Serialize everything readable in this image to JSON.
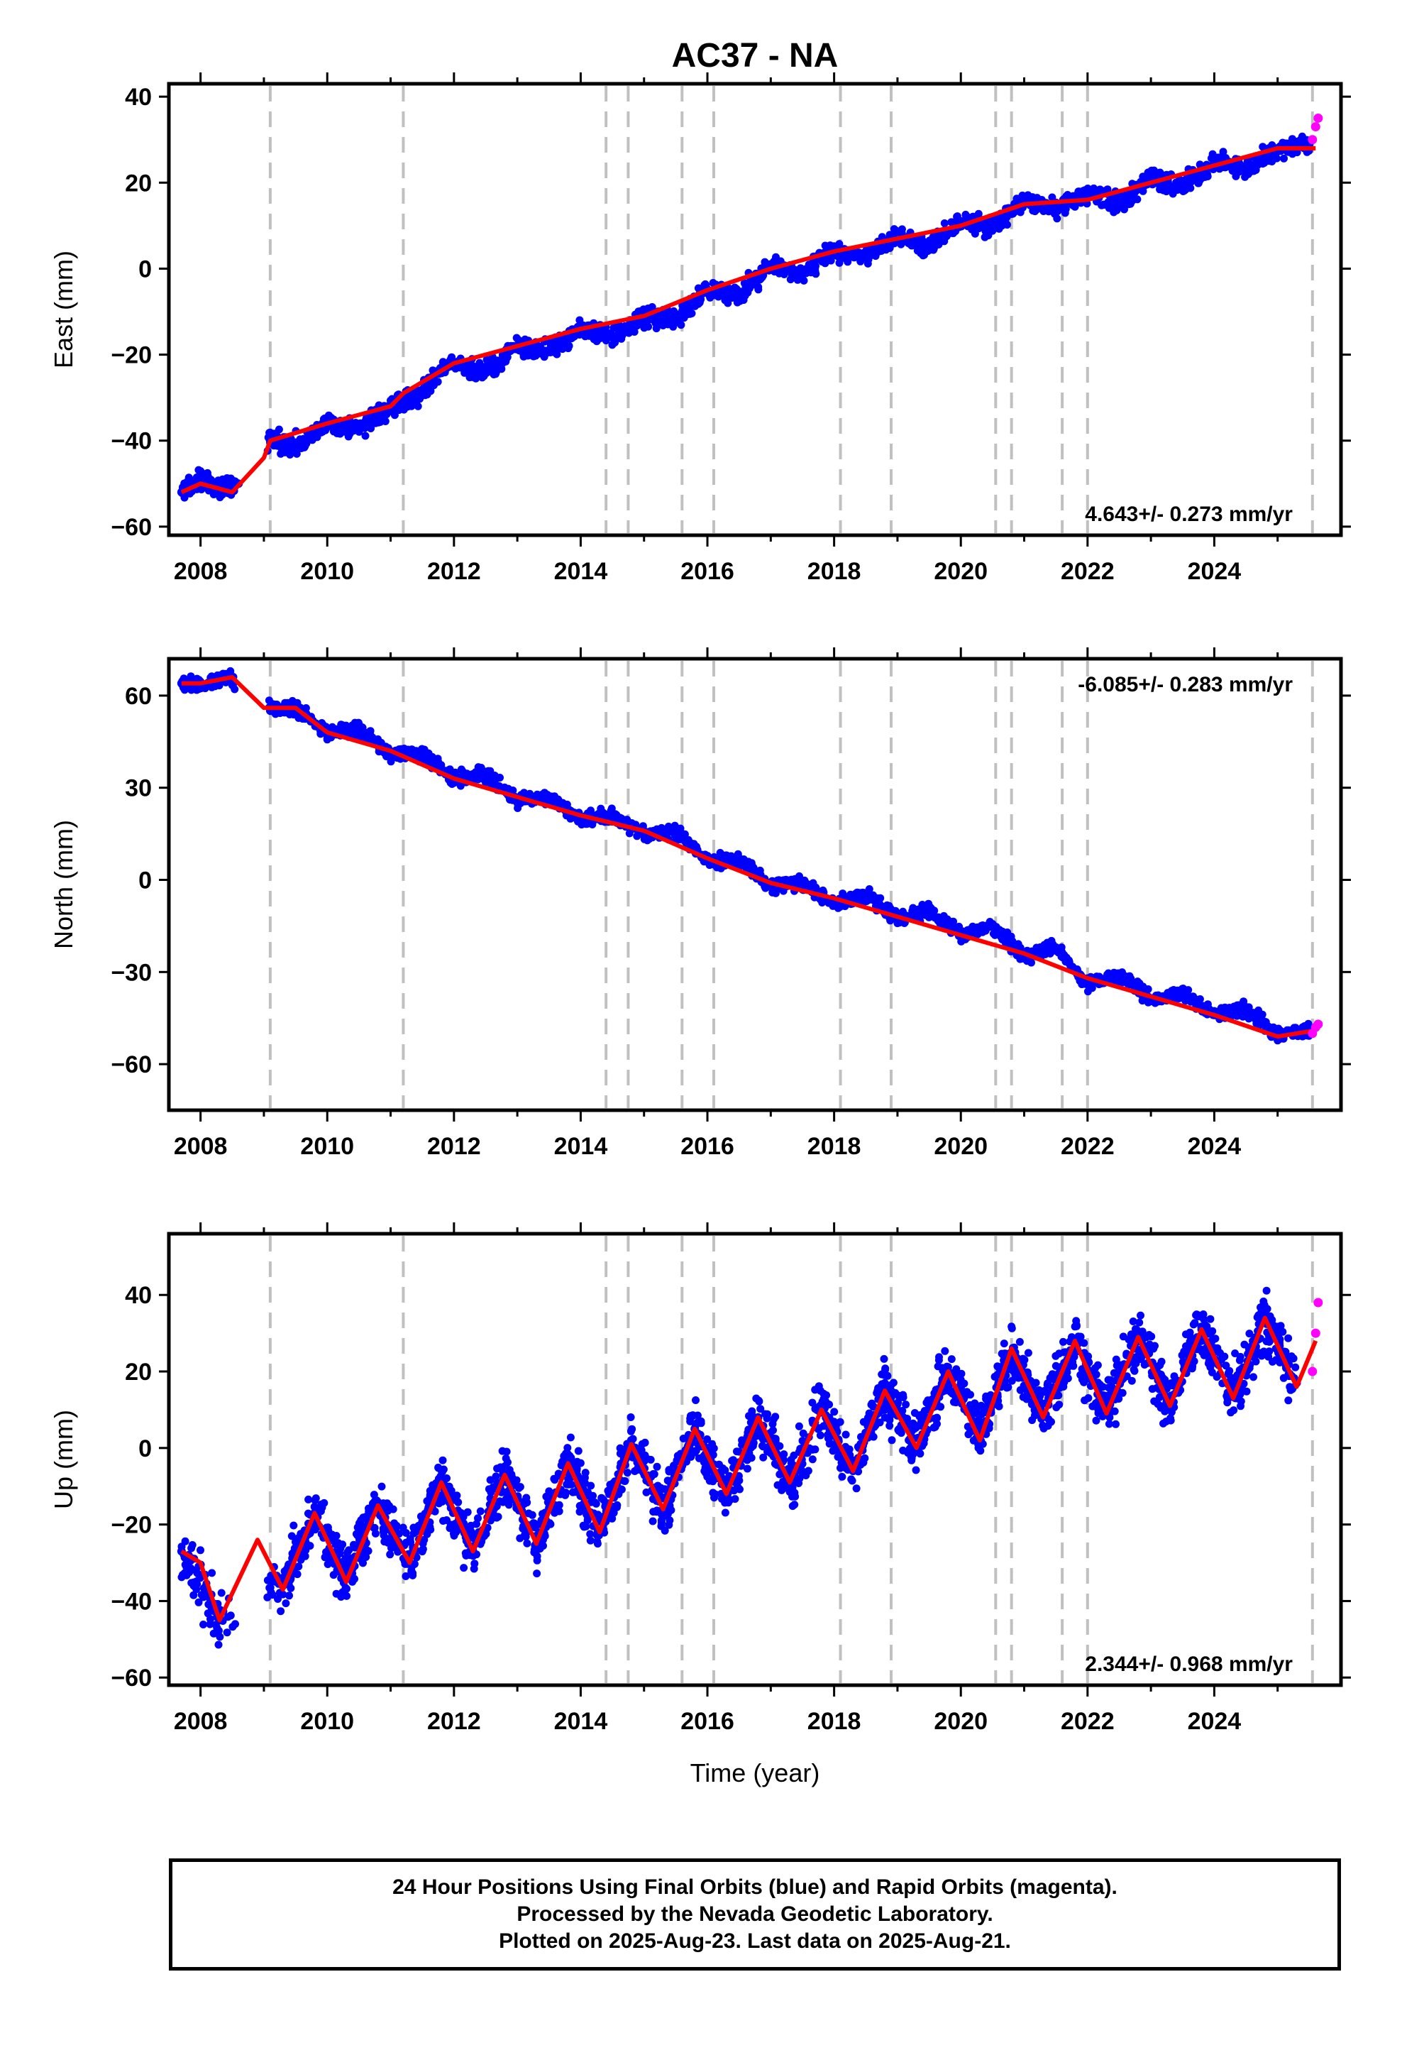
{
  "figure": {
    "title": "AC37 - NA",
    "caption": [
      "24 Hour Positions Using Final Orbits (blue) and Rapid Orbits (magenta).",
      "Processed by the Nevada Geodetic Laboratory.",
      "Plotted on 2025-Aug-23. Last data on 2025-Aug-21."
    ]
  },
  "colors": {
    "final_orbits": "#0000ff",
    "rapid_orbits": "#ff00ff",
    "model": "#ff0000",
    "event_lines": "#c0c0c0",
    "frame": "#000000"
  },
  "chart_data": [
    {
      "type": "scatter",
      "component": "East",
      "ylabel": "East (mm)",
      "xlabel": "",
      "xlim": [
        2007.5,
        2026.0
      ],
      "ylim": [
        -62,
        43
      ],
      "yticks": [
        -60,
        -40,
        -20,
        0,
        20,
        40
      ],
      "xticks": [
        2008,
        2010,
        2012,
        2014,
        2016,
        2018,
        2020,
        2022,
        2024
      ],
      "rate_text": "4.643+/- 0.273 mm/yr",
      "rate_placement": "bottom-right",
      "series": [
        {
          "name": "Final Orbits (blue)",
          "color": "#0000ff",
          "x": [
            2007.7,
            2008.0,
            2008.3,
            2008.6,
            2009.1,
            2009.5,
            2010.0,
            2010.5,
            2011.0,
            2011.5,
            2011.9,
            2012.5,
            2013.0,
            2013.5,
            2014.0,
            2014.5,
            2015.0,
            2015.5,
            2016.0,
            2016.5,
            2017.0,
            2017.5,
            2018.0,
            2018.5,
            2019.0,
            2019.5,
            2020.0,
            2020.5,
            2021.0,
            2021.5,
            2022.0,
            2022.5,
            2023.0,
            2023.5,
            2024.0,
            2024.5,
            2025.0,
            2025.5
          ],
          "y": [
            -52,
            -49,
            -51,
            -50,
            -40,
            -41,
            -36,
            -37,
            -32,
            -29,
            -22,
            -24,
            -18,
            -19,
            -14,
            -16,
            -11,
            -12,
            -5,
            -6,
            1,
            -1,
            4,
            3,
            8,
            5,
            11,
            10,
            16,
            14,
            18,
            15,
            21,
            19,
            25,
            23,
            28,
            29
          ]
        },
        {
          "name": "Rapid Orbits (magenta)",
          "color": "#ff00ff",
          "x": [
            2025.55,
            2025.6,
            2025.64
          ],
          "y": [
            30,
            33,
            35
          ]
        },
        {
          "name": "Model",
          "color": "#ff0000",
          "x": [
            2007.7,
            2008.0,
            2008.5,
            2009.0,
            2009.1,
            2010.0,
            2011.0,
            2011.2,
            2012.0,
            2013.0,
            2014.0,
            2015.0,
            2016.0,
            2017.0,
            2018.0,
            2019.0,
            2020.0,
            2021.0,
            2022.0,
            2023.0,
            2024.0,
            2025.0,
            2025.6
          ],
          "y": [
            -52,
            -50,
            -52,
            -44,
            -40,
            -36,
            -32,
            -29,
            -22,
            -18,
            -14,
            -11,
            -5,
            0,
            4,
            7,
            10,
            15,
            16,
            20,
            24,
            28,
            28
          ]
        }
      ]
    },
    {
      "type": "scatter",
      "component": "North",
      "ylabel": "North (mm)",
      "xlabel": "",
      "xlim": [
        2007.5,
        2026.0
      ],
      "ylim": [
        -75,
        72
      ],
      "yticks": [
        -60,
        -30,
        0,
        30,
        60
      ],
      "xticks": [
        2008,
        2010,
        2012,
        2014,
        2016,
        2018,
        2020,
        2022,
        2024
      ],
      "rate_text": "-6.085+/- 0.283 mm/yr",
      "rate_placement": "top-right",
      "series": [
        {
          "name": "Final Orbits (blue)",
          "color": "#0000ff",
          "x": [
            2007.7,
            2008.0,
            2008.4,
            2009.1,
            2009.5,
            2010.0,
            2010.5,
            2011.0,
            2011.5,
            2012.0,
            2012.5,
            2013.0,
            2013.5,
            2014.0,
            2014.5,
            2015.0,
            2015.5,
            2016.0,
            2016.5,
            2017.0,
            2017.5,
            2018.0,
            2018.5,
            2019.0,
            2019.5,
            2020.0,
            2020.5,
            2021.0,
            2021.5,
            2022.0,
            2022.5,
            2023.0,
            2023.5,
            2024.0,
            2024.5,
            2025.0,
            2025.5
          ],
          "y": [
            64,
            63,
            66,
            56,
            56,
            48,
            49,
            41,
            41,
            33,
            34,
            26,
            27,
            20,
            21,
            15,
            16,
            6,
            7,
            -2,
            -1,
            -8,
            -5,
            -13,
            -10,
            -18,
            -15,
            -25,
            -22,
            -34,
            -31,
            -39,
            -37,
            -44,
            -42,
            -51,
            -49
          ]
        },
        {
          "name": "Rapid Orbits (magenta)",
          "color": "#ff00ff",
          "x": [
            2025.55,
            2025.6,
            2025.64
          ],
          "y": [
            -50,
            -48,
            -47
          ]
        },
        {
          "name": "Model",
          "color": "#ff0000",
          "x": [
            2007.7,
            2008.0,
            2008.5,
            2009.0,
            2009.5,
            2010.0,
            2011.0,
            2012.0,
            2013.0,
            2014.0,
            2015.0,
            2016.0,
            2017.0,
            2018.0,
            2019.0,
            2020.0,
            2021.0,
            2022.0,
            2023.0,
            2024.0,
            2025.0,
            2025.6
          ],
          "y": [
            64,
            64,
            66,
            56,
            56,
            48,
            42,
            33,
            27,
            21,
            16,
            7,
            -1,
            -6,
            -12,
            -18,
            -24,
            -32,
            -38,
            -44,
            -51,
            -49
          ]
        }
      ]
    },
    {
      "type": "scatter",
      "component": "Up",
      "ylabel": "Up (mm)",
      "xlabel": "Time (year)",
      "xlim": [
        2007.5,
        2026.0
      ],
      "ylim": [
        -62,
        56
      ],
      "yticks": [
        -60,
        -40,
        -20,
        0,
        20,
        40
      ],
      "xticks": [
        2008,
        2010,
        2012,
        2014,
        2016,
        2018,
        2020,
        2022,
        2024
      ],
      "rate_text": "2.344+/- 0.968 mm/yr",
      "rate_placement": "bottom-right",
      "series": [
        {
          "name": "Final Orbits (blue)",
          "color": "#0000ff",
          "x": [
            2007.7,
            2008.3,
            2009.3,
            2009.8,
            2010.3,
            2010.8,
            2011.3,
            2011.8,
            2012.3,
            2012.8,
            2013.3,
            2013.8,
            2014.3,
            2014.8,
            2015.3,
            2015.8,
            2016.3,
            2016.8,
            2017.3,
            2017.8,
            2018.3,
            2018.8,
            2019.3,
            2019.8,
            2020.3,
            2020.8,
            2021.3,
            2021.8,
            2022.3,
            2022.8,
            2023.3,
            2023.8,
            2024.3,
            2024.8,
            2025.3
          ],
          "y": [
            -27,
            -45,
            -36,
            -17,
            -34,
            -15,
            -30,
            -9,
            -27,
            -7,
            -25,
            -4,
            -22,
            2,
            -16,
            5,
            -12,
            8,
            -9,
            10,
            -6,
            15,
            0,
            20,
            3,
            25,
            9,
            28,
            9,
            29,
            11,
            31,
            14,
            34,
            17
          ]
        },
        {
          "name": "Rapid Orbits (magenta)",
          "color": "#ff00ff",
          "x": [
            2025.55,
            2025.6,
            2025.64
          ],
          "y": [
            20,
            30,
            38
          ]
        },
        {
          "name": "Model",
          "color": "#ff0000",
          "x": [
            2007.7,
            2008.0,
            2008.3,
            2008.9,
            2009.3,
            2009.8,
            2010.3,
            2010.8,
            2011.3,
            2011.8,
            2012.3,
            2012.8,
            2013.3,
            2013.8,
            2014.3,
            2014.8,
            2015.3,
            2015.8,
            2016.3,
            2016.8,
            2017.3,
            2017.8,
            2018.3,
            2018.8,
            2019.3,
            2019.8,
            2020.3,
            2020.8,
            2021.3,
            2021.8,
            2022.3,
            2022.8,
            2023.3,
            2023.8,
            2024.3,
            2024.8,
            2025.3,
            2025.6
          ],
          "y": [
            -27,
            -30,
            -45,
            -24,
            -37,
            -17,
            -35,
            -15,
            -30,
            -9,
            -27,
            -7,
            -25,
            -4,
            -22,
            1,
            -16,
            5,
            -12,
            8,
            -9,
            10,
            -6,
            15,
            0,
            20,
            2,
            26,
            8,
            28,
            9,
            29,
            11,
            31,
            13,
            34,
            16,
            28
          ]
        }
      ]
    }
  ],
  "event_lines": [
    2009.1,
    2011.2,
    2014.4,
    2014.75,
    2015.6,
    2016.1,
    2018.1,
    2018.9,
    2020.55,
    2020.8,
    2021.6,
    2022.0,
    2025.55
  ]
}
